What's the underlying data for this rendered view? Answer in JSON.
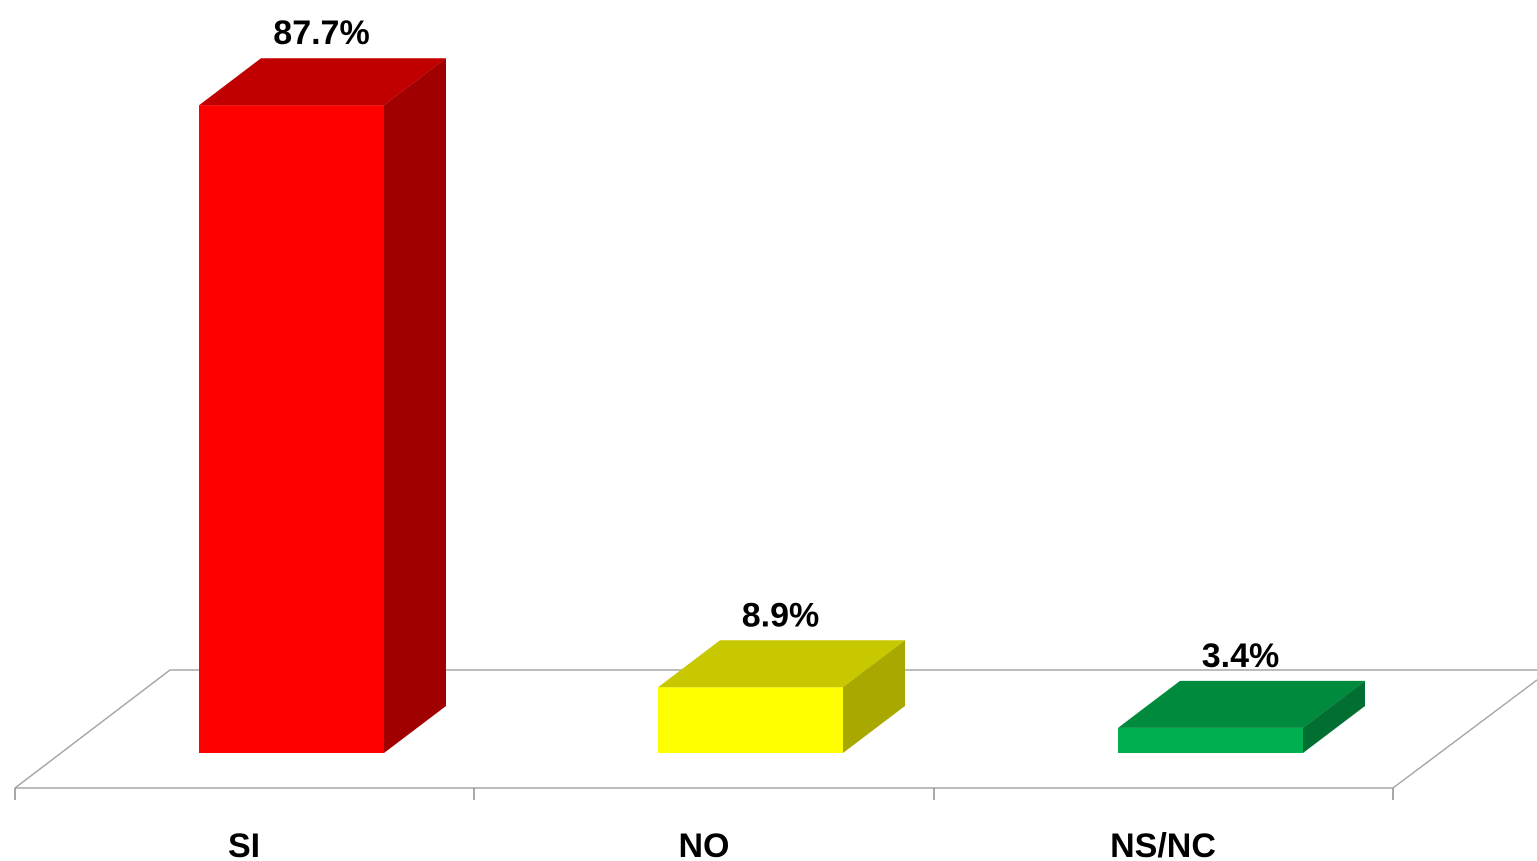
{
  "chart_data": {
    "type": "bar",
    "style": "3d-column",
    "categories": [
      "SI",
      "NO",
      "NS/NC"
    ],
    "values": [
      87.7,
      8.9,
      3.4
    ],
    "data_labels": [
      "87.7%",
      "8.9%",
      "3.4%"
    ],
    "unit": "%",
    "ylim": [
      0,
      88
    ],
    "grid": false,
    "legend": "none",
    "colors": {
      "front": [
        "#ff0000",
        "#ffff00",
        "#00b050"
      ],
      "top": [
        "#c00000",
        "#c8c800",
        "#008a3e"
      ],
      "side": [
        "#a00000",
        "#a8a800",
        "#006f31"
      ]
    }
  }
}
